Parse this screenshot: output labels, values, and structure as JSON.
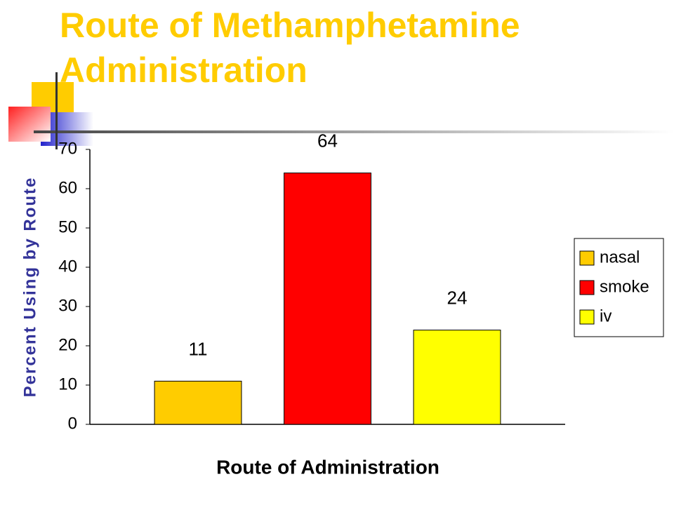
{
  "chart_data": {
    "type": "bar",
    "title": "Route of Methamphetamine Administration",
    "x_label": "Route of Administration",
    "y_label": "Percent Using by Route",
    "categories": [
      null
    ],
    "series": [
      {
        "name": "nasal",
        "color": "#ffcc00",
        "values": [
          11
        ]
      },
      {
        "name": "smoke",
        "color": "#ff0000",
        "values": [
          64
        ]
      },
      {
        "name": "iv",
        "color": "#ffff00",
        "values": [
          24
        ]
      }
    ],
    "ylim": [
      0,
      70
    ],
    "yticks": [
      0,
      10,
      20,
      30,
      40,
      50,
      60,
      70
    ],
    "grid": false,
    "legend": "right"
  }
}
